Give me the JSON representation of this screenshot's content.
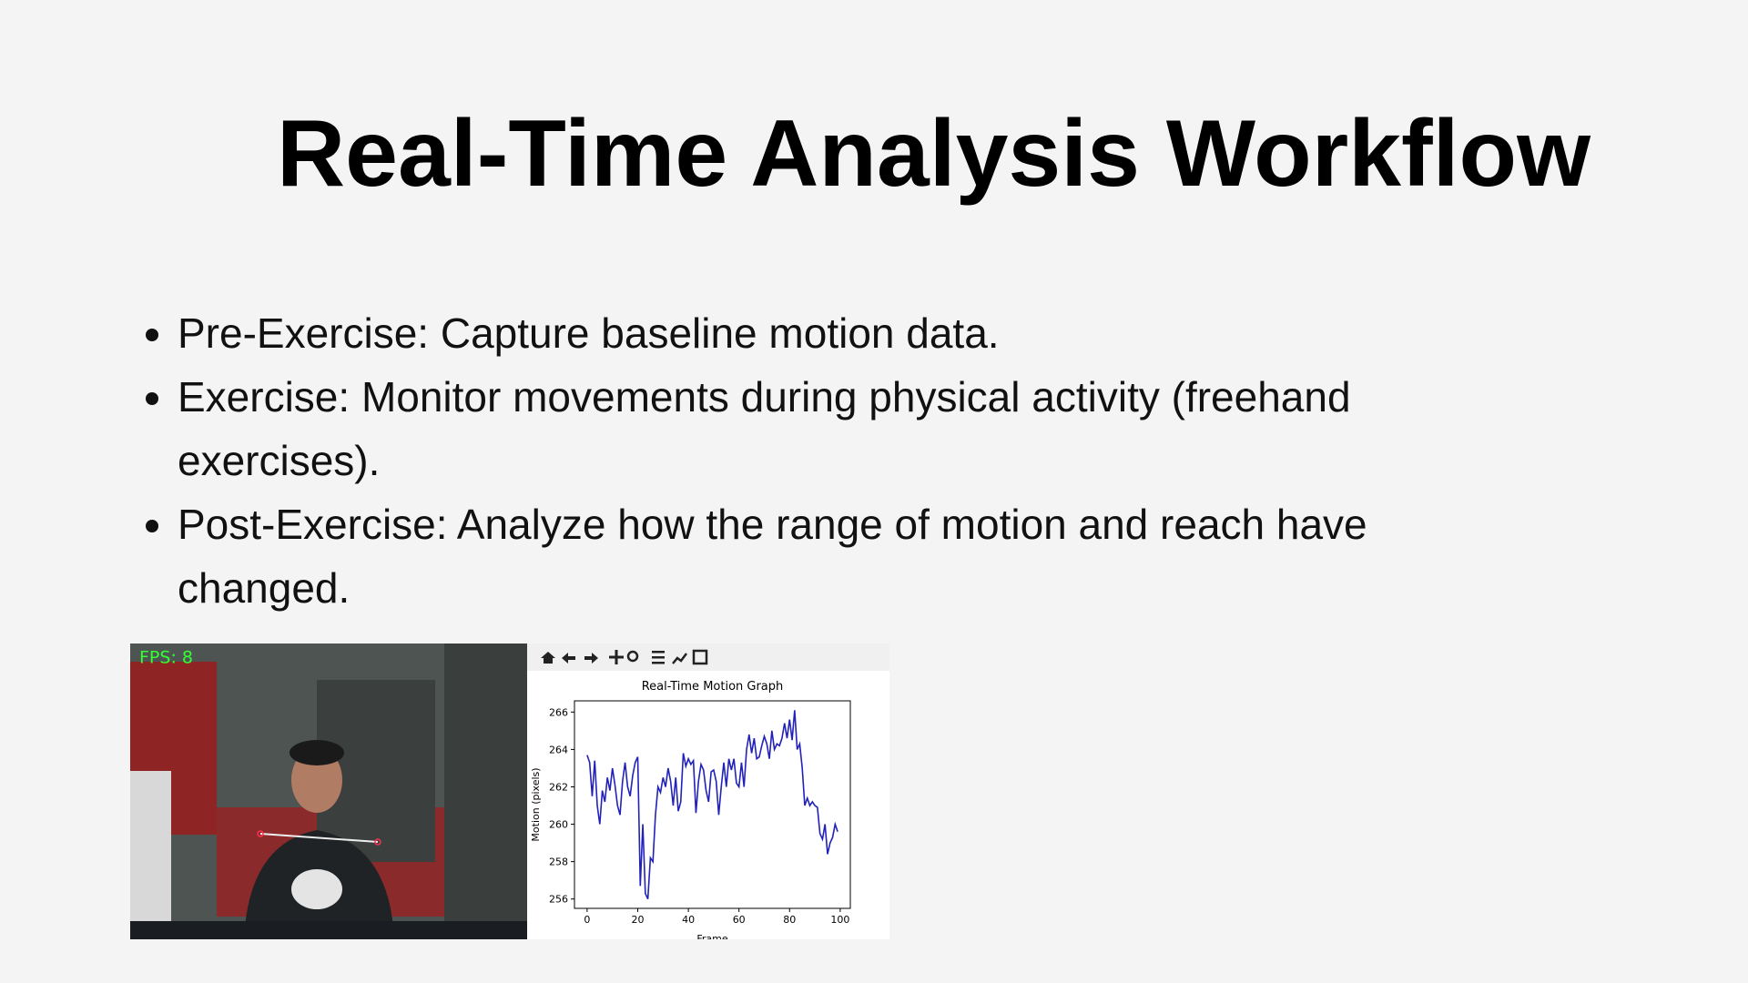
{
  "header": {
    "title": "Real-Time Analysis Workflow"
  },
  "bullets": [
    "Pre-Exercise: Capture baseline motion data.",
    "Exercise: Monitor movements during physical activity (freehand exercises).",
    "Post-Exercise: Analyze how the range of motion and reach have changed."
  ],
  "figure": {
    "fps_label": "FPS: 8",
    "chart": {
      "type": "line",
      "title": "Real-Time Motion Graph",
      "xlabel": "Frame",
      "ylabel": "Motion (pixels)",
      "color": "#2222bb",
      "x": [
        0,
        1,
        2,
        3,
        4,
        5,
        6,
        7,
        8,
        9,
        10,
        11,
        12,
        13,
        14,
        15,
        16,
        17,
        18,
        19,
        20,
        21,
        22,
        23,
        24,
        25,
        26,
        27,
        28,
        29,
        30,
        31,
        32,
        33,
        34,
        35,
        36,
        37,
        38,
        39,
        40,
        41,
        42,
        43,
        44,
        45,
        46,
        47,
        48,
        49,
        50,
        51,
        52,
        53,
        54,
        55,
        56,
        57,
        58,
        59,
        60,
        61,
        62,
        63,
        64,
        65,
        66,
        67,
        68,
        69,
        70,
        71,
        72,
        73,
        74,
        75,
        76,
        77,
        78,
        79,
        80,
        81,
        82,
        83,
        84,
        85,
        86,
        87,
        88,
        89,
        90,
        91,
        92,
        93,
        94,
        95,
        96,
        97,
        98,
        99
      ],
      "values": [
        263.7,
        263.3,
        261.5,
        263.4,
        261.0,
        260.0,
        261.8,
        261.2,
        262.5,
        261.8,
        263.0,
        262.1,
        261.0,
        260.5,
        262.3,
        263.3,
        262.0,
        261.5,
        262.6,
        263.3,
        263.6,
        256.7,
        260.0,
        256.3,
        256.0,
        258.2,
        258.0,
        260.5,
        262.0,
        261.7,
        262.5,
        262.0,
        263.0,
        262.3,
        261.0,
        262.5,
        260.7,
        261.2,
        263.8,
        263.1,
        263.5,
        263.2,
        263.4,
        260.6,
        262.3,
        263.2,
        262.9,
        261.8,
        261.2,
        262.8,
        262.9,
        262.3,
        260.5,
        262.0,
        263.3,
        262.0,
        263.5,
        262.9,
        263.5,
        262.2,
        262.0,
        263.3,
        262.0,
        264.0,
        264.8,
        263.8,
        264.6,
        263.5,
        263.6,
        264.2,
        264.7,
        264.3,
        263.5,
        265.0,
        264.0,
        264.3,
        264.2,
        264.6,
        265.4,
        264.6,
        265.6,
        264.5,
        266.1,
        264.0,
        264.3,
        263.0,
        261.0,
        261.4,
        261.0,
        261.2,
        261.0,
        260.9,
        259.5,
        259.2,
        260.0,
        258.4,
        259.0,
        259.3,
        260.0,
        259.6
      ],
      "xlim": [
        -5,
        104
      ],
      "ylim": [
        255.5,
        266.6
      ],
      "xticks": [
        0,
        20,
        40,
        60,
        80,
        100
      ],
      "yticks": [
        256,
        258,
        260,
        262,
        264,
        266
      ]
    }
  }
}
